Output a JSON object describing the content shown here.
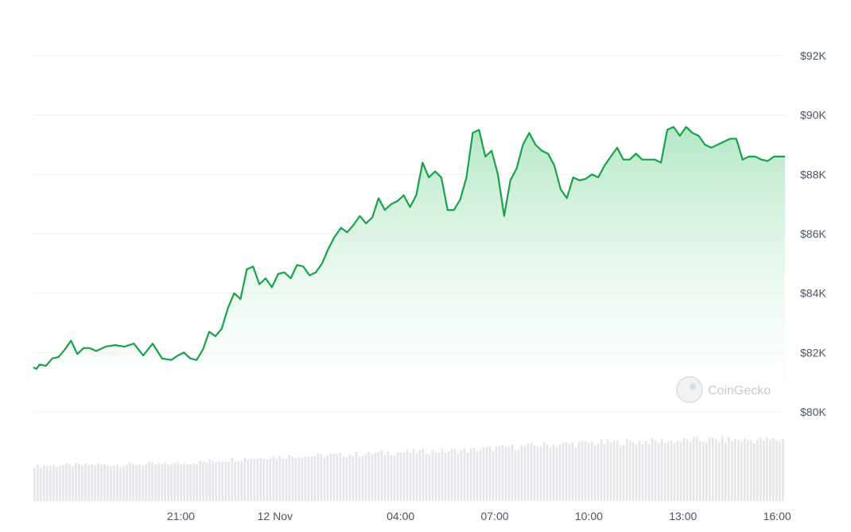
{
  "chart_data": {
    "type": "area",
    "ylim": [
      80000,
      92000
    ],
    "yticks": [
      {
        "value": 92000,
        "label": "$92K"
      },
      {
        "value": 90000,
        "label": "$90K"
      },
      {
        "value": 88000,
        "label": "$88K"
      },
      {
        "value": 86000,
        "label": "$86K"
      },
      {
        "value": 84000,
        "label": "$84K"
      },
      {
        "value": 82000,
        "label": "$82K"
      },
      {
        "value": 80000,
        "label": "$80K"
      }
    ],
    "xlim": [
      16.3,
      40.25
    ],
    "xticks": [
      {
        "value": 21,
        "label": "21:00"
      },
      {
        "value": 24,
        "label": "12 Nov"
      },
      {
        "value": 28,
        "label": "04:00"
      },
      {
        "value": 31,
        "label": "07:00"
      },
      {
        "value": 34,
        "label": "10:00"
      },
      {
        "value": 37,
        "label": "13:00"
      },
      {
        "value": 40,
        "label": "16:00"
      }
    ],
    "grid": true,
    "legend": "none",
    "colors": {
      "line": "#16a34a",
      "fill_top": "#a7e3bc",
      "fill_bottom": "#ffffff",
      "volume": "#e5e7eb",
      "grid": "#eef0f3"
    },
    "watermark": "CoinGecko",
    "price_series": {
      "x": [
        16.3,
        16.4,
        16.5,
        16.7,
        16.9,
        17.1,
        17.3,
        17.5,
        17.7,
        17.9,
        18.1,
        18.3,
        18.6,
        18.9,
        19.2,
        19.5,
        19.8,
        20.1,
        20.4,
        20.7,
        20.9,
        21.1,
        21.3,
        21.5,
        21.7,
        21.9,
        22.1,
        22.3,
        22.5,
        22.7,
        22.9,
        23.1,
        23.3,
        23.5,
        23.7,
        23.9,
        24.1,
        24.3,
        24.5,
        24.7,
        24.9,
        25.1,
        25.3,
        25.5,
        25.7,
        25.9,
        26.1,
        26.3,
        26.5,
        26.7,
        26.9,
        27.1,
        27.3,
        27.5,
        27.7,
        27.9,
        28.1,
        28.3,
        28.5,
        28.7,
        28.9,
        29.1,
        29.3,
        29.5,
        29.7,
        29.9,
        30.1,
        30.3,
        30.5,
        30.7,
        30.9,
        31.1,
        31.3,
        31.5,
        31.7,
        31.9,
        32.1,
        32.3,
        32.5,
        32.7,
        32.9,
        33.1,
        33.3,
        33.5,
        33.7,
        33.9,
        34.1,
        34.3,
        34.5,
        34.7,
        34.9,
        35.1,
        35.3,
        35.5,
        35.7,
        35.9,
        36.1,
        36.3,
        36.5,
        36.7,
        36.9,
        37.1,
        37.3,
        37.5,
        37.7,
        37.9,
        38.1,
        38.3,
        38.5,
        38.7,
        38.9,
        39.1,
        39.3,
        39.5,
        39.7,
        39.9,
        40.1,
        40.2,
        40.25
      ],
      "y": [
        81500,
        81450,
        81600,
        81550,
        81800,
        81850,
        82100,
        82400,
        81950,
        82150,
        82150,
        82050,
        82200,
        82250,
        82200,
        82300,
        81900,
        82300,
        81800,
        81750,
        81900,
        82000,
        81800,
        81750,
        82100,
        82700,
        82550,
        82800,
        83500,
        84000,
        83800,
        84800,
        84900,
        84300,
        84500,
        84200,
        84650,
        84700,
        84500,
        84950,
        84900,
        84600,
        84700,
        85000,
        85500,
        85900,
        86200,
        86050,
        86300,
        86600,
        86350,
        86550,
        87200,
        86800,
        87000,
        87100,
        87300,
        86900,
        87300,
        88400,
        87900,
        88100,
        87900,
        86800,
        86800,
        87150,
        87900,
        89400,
        89500,
        88600,
        88800,
        88000,
        86600,
        87800,
        88200,
        89000,
        89400,
        89000,
        88800,
        88700,
        88300,
        87500,
        87200,
        87900,
        87800,
        87850,
        88000,
        87900,
        88300,
        88600,
        88900,
        88500,
        88500,
        88700,
        88500,
        88500,
        88500,
        88400,
        89500,
        89600,
        89300,
        89600,
        89400,
        89300,
        89000,
        88900,
        89000,
        89100,
        89200,
        89200,
        88500,
        88600,
        88600,
        88500,
        88450,
        88600,
        88600,
        88600,
        88600
      ]
    },
    "volume_series": {
      "x": [
        16.3,
        18.0,
        20.0,
        21.0,
        22.5,
        24.0,
        26.0,
        28.0,
        30.0,
        32.0,
        34.0,
        36.0,
        38.0,
        40.25
      ],
      "y": [
        46,
        47,
        48,
        49,
        54,
        58,
        60,
        64,
        66,
        72,
        76,
        78,
        80,
        80
      ]
    }
  }
}
